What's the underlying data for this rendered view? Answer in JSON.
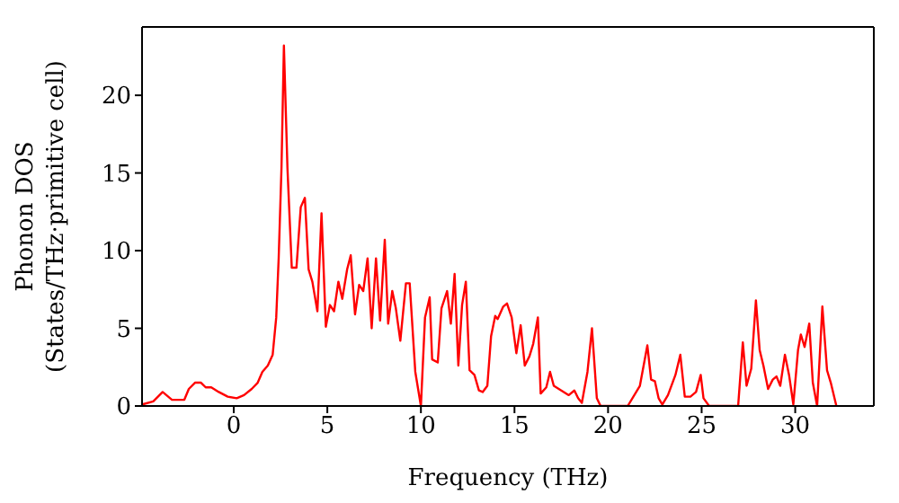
{
  "chart_data": {
    "type": "line",
    "xlabel": "Frequency (THz)",
    "ylabel": "Phonon DOS\n(States/THz·primitive cell)",
    "xlim": [
      -4.9,
      34.2
    ],
    "ylim": [
      0,
      24.4
    ],
    "xticks": [
      0,
      5,
      10,
      15,
      20,
      25,
      30
    ],
    "yticks": [
      0,
      5,
      10,
      15,
      20
    ],
    "legend": false,
    "marker": "none",
    "line_style": "solid",
    "series": [
      {
        "color": "#ff0000",
        "x": [
          -4.88,
          -4.3,
          -3.8,
          -3.6,
          -3.3,
          -2.64,
          -2.4,
          -2.07,
          -1.75,
          -1.5,
          -1.2,
          -0.8,
          -0.32,
          0.16,
          0.55,
          0.96,
          1.28,
          1.53,
          1.82,
          2.08,
          2.27,
          2.4,
          2.55,
          2.68,
          2.87,
          3.1,
          3.35,
          3.58,
          3.8,
          4.0,
          4.2,
          4.47,
          4.69,
          4.92,
          5.14,
          5.36,
          5.59,
          5.8,
          6.06,
          6.25,
          6.48,
          6.7,
          6.92,
          7.15,
          7.37,
          7.6,
          7.82,
          8.07,
          8.25,
          8.47,
          8.66,
          8.9,
          9.2,
          9.4,
          9.7,
          10.0,
          10.22,
          10.47,
          10.6,
          10.9,
          11.1,
          11.4,
          11.6,
          11.8,
          12.0,
          12.2,
          12.4,
          12.6,
          12.86,
          13.1,
          13.3,
          13.55,
          13.75,
          13.97,
          14.1,
          14.4,
          14.6,
          14.85,
          15.1,
          15.33,
          15.55,
          15.8,
          16.0,
          16.25,
          16.4,
          16.7,
          16.9,
          17.1,
          17.5,
          17.9,
          18.2,
          18.4,
          18.6,
          18.9,
          19.14,
          19.4,
          19.6,
          21.05,
          21.7,
          22.1,
          22.3,
          22.5,
          22.7,
          22.9,
          23.2,
          23.6,
          23.86,
          24.1,
          24.4,
          24.7,
          24.95,
          25.1,
          25.4,
          26.95,
          27.2,
          27.4,
          27.65,
          27.9,
          28.1,
          28.3,
          28.55,
          28.8,
          29.0,
          29.2,
          29.45,
          29.67,
          29.9,
          30.15,
          30.3,
          30.5,
          30.75,
          30.94,
          31.17,
          31.45,
          31.7,
          31.9,
          32.2
        ],
        "values": [
          0.1,
          0.3,
          0.9,
          0.7,
          0.4,
          0.4,
          1.1,
          1.5,
          1.5,
          1.2,
          1.2,
          0.9,
          0.6,
          0.5,
          0.7,
          1.1,
          1.5,
          2.2,
          2.6,
          3.3,
          5.7,
          9.5,
          15.3,
          23.2,
          15.3,
          8.9,
          8.9,
          12.8,
          13.4,
          8.8,
          8.0,
          6.1,
          12.4,
          5.1,
          6.5,
          6.1,
          8.0,
          6.9,
          8.8,
          9.7,
          5.9,
          7.8,
          7.4,
          9.5,
          5.0,
          9.5,
          5.5,
          10.7,
          5.3,
          7.4,
          6.3,
          4.2,
          7.9,
          7.9,
          2.2,
          0,
          5.7,
          7.0,
          3.0,
          2.8,
          6.3,
          7.4,
          5.3,
          8.5,
          2.6,
          6.5,
          8.0,
          2.3,
          2.0,
          1.0,
          0.9,
          1.3,
          4.5,
          5.8,
          5.6,
          6.4,
          6.6,
          5.7,
          3.4,
          5.2,
          2.6,
          3.2,
          4.0,
          5.7,
          0.8,
          1.2,
          2.2,
          1.3,
          1.0,
          0.7,
          1.0,
          0.5,
          0.2,
          2.2,
          5.0,
          0.5,
          0,
          0,
          1.3,
          3.9,
          1.7,
          1.6,
          0.5,
          0.1,
          0.7,
          2.0,
          3.3,
          0.6,
          0.6,
          0.9,
          2.0,
          0.5,
          0,
          0,
          4.1,
          1.3,
          2.4,
          6.8,
          3.6,
          2.6,
          1.1,
          1.7,
          1.9,
          1.3,
          3.3,
          2.0,
          0.1,
          3.6,
          4.6,
          3.8,
          5.3,
          1.5,
          0,
          6.4,
          2.3,
          1.5,
          0
        ]
      }
    ]
  }
}
